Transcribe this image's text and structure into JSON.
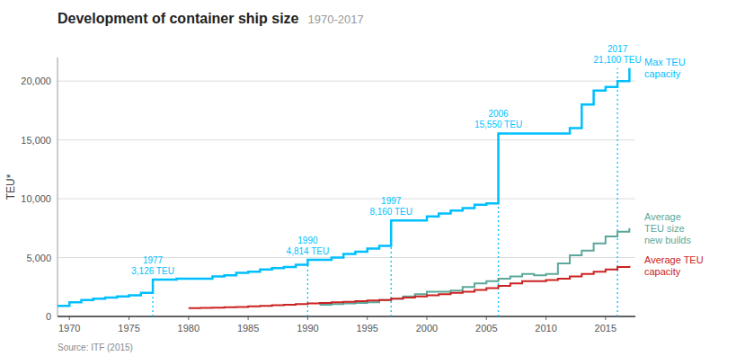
{
  "chart_data": {
    "type": "step",
    "title": "Development of container ship size",
    "subtitle": "1970-2017",
    "y_label": "TEU*",
    "source": "Source: ITF (2015)",
    "xlim": [
      1969,
      2017.5
    ],
    "ylim": [
      0,
      22000
    ],
    "xticks": [
      1970,
      1975,
      1980,
      1985,
      1990,
      1995,
      2000,
      2005,
      2010,
      2015
    ],
    "yticks": [
      0,
      {
        "value": 5000,
        "label": "5,000"
      },
      {
        "value": 10000,
        "label": "10,000"
      },
      {
        "value": 15000,
        "label": "15,000"
      },
      {
        "value": 20000,
        "label": "20,000"
      }
    ],
    "grid": true,
    "series": [
      {
        "name": "Max TEU\ncapacity",
        "color": "#00BFFF",
        "x": [
          1969,
          1970,
          1971,
          1972,
          1973,
          1974,
          1975,
          1976,
          1977,
          1978,
          1979,
          1980,
          1981,
          1982,
          1983,
          1984,
          1985,
          1986,
          1987,
          1988,
          1989,
          1990,
          1991,
          1992,
          1993,
          1994,
          1995,
          1996,
          1997,
          1998,
          1999,
          2000,
          2001,
          2002,
          2003,
          2004,
          2005,
          2006,
          2007,
          2008,
          2009,
          2010,
          2011,
          2012,
          2013,
          2014,
          2015,
          2016,
          2017
        ],
        "values": [
          900,
          1200,
          1400,
          1500,
          1600,
          1700,
          1800,
          2000,
          3126,
          3126,
          3200,
          3200,
          3200,
          3400,
          3500,
          3700,
          3800,
          4000,
          4100,
          4200,
          4400,
          4814,
          4814,
          5000,
          5300,
          5500,
          5762,
          6000,
          8160,
          8160,
          8160,
          8500,
          8750,
          9000,
          9200,
          9500,
          9600,
          15550,
          15550,
          15550,
          15550,
          15550,
          15550,
          16000,
          18000,
          19200,
          19500,
          20000,
          21100
        ]
      },
      {
        "name": "Average\nTEU size\nnew builds",
        "color": "#5BA89A",
        "x": [
          1991,
          1992,
          1993,
          1994,
          1995,
          1996,
          1997,
          1998,
          1999,
          2000,
          2001,
          2002,
          2003,
          2004,
          2005,
          2006,
          2007,
          2008,
          2009,
          2010,
          2011,
          2012,
          2013,
          2014,
          2015,
          2016,
          2017
        ],
        "values": [
          1000,
          1050,
          1100,
          1150,
          1200,
          1400,
          1500,
          1700,
          1900,
          2100,
          2100,
          2200,
          2500,
          2800,
          3000,
          3200,
          3400,
          3600,
          3500,
          3600,
          4500,
          5200,
          5600,
          6200,
          6800,
          7200,
          7500
        ]
      },
      {
        "name": "Average TEU\ncapacity",
        "color": "#CC2222",
        "x": [
          1980,
          1981,
          1982,
          1983,
          1984,
          1985,
          1986,
          1987,
          1988,
          1989,
          1990,
          1991,
          1992,
          1993,
          1994,
          1995,
          1996,
          1997,
          1998,
          1999,
          2000,
          2001,
          2002,
          2003,
          2004,
          2005,
          2006,
          2007,
          2008,
          2009,
          2010,
          2011,
          2012,
          2013,
          2014,
          2015,
          2016,
          2017
        ],
        "values": [
          700,
          720,
          750,
          780,
          810,
          850,
          900,
          950,
          1000,
          1050,
          1100,
          1150,
          1200,
          1250,
          1300,
          1350,
          1400,
          1500,
          1600,
          1700,
          1800,
          1900,
          2000,
          2100,
          2250,
          2400,
          2600,
          2800,
          3000,
          3000,
          3100,
          3200,
          3400,
          3600,
          3800,
          4000,
          4200,
          4300
        ]
      }
    ],
    "annotations": [
      {
        "x": 1977,
        "y": 3126,
        "label": "1977\n3,126 TEU",
        "color": "#00BFFF"
      },
      {
        "x": 1990,
        "y": 4814,
        "label": "1990\n4,814 TEU",
        "color": "#00BFFF"
      },
      {
        "x": 1997,
        "y": 8160,
        "label": "1997\n8,160 TEU",
        "color": "#00BFFF"
      },
      {
        "x": 2006,
        "y": 15550,
        "label": "2006\n15,550 TEU",
        "color": "#00BFFF"
      },
      {
        "x": 2016,
        "y": 21100,
        "label": "2017\n21,100 TEU",
        "color": "#00BFFF"
      }
    ]
  }
}
